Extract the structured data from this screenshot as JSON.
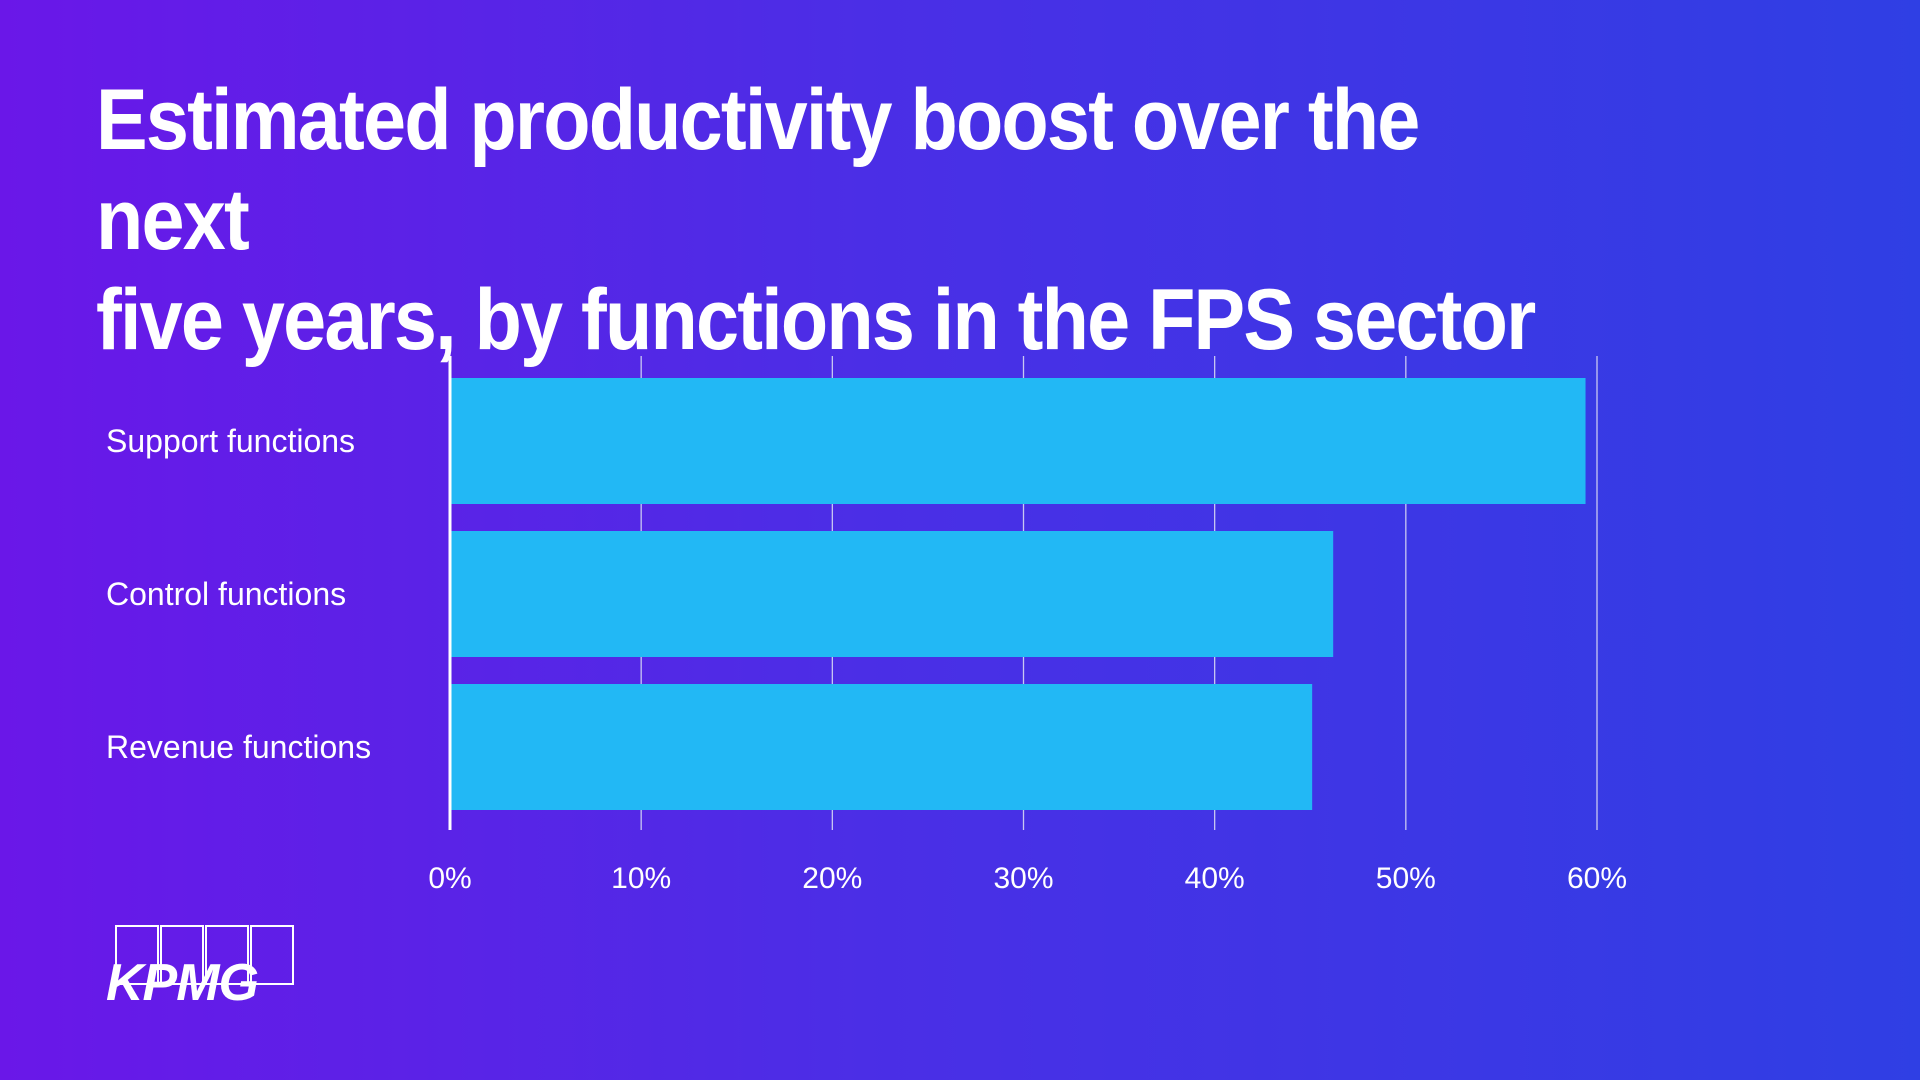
{
  "title": {
    "line1": "Estimated productivity boost over the next",
    "line2": "five years, by functions in the FPS sector"
  },
  "colors": {
    "bar": "#22b8f5",
    "gridline": "#c9c8f2",
    "text": "#ffffff"
  },
  "logo": {
    "text": "KPMG"
  },
  "chart_data": {
    "type": "bar",
    "orientation": "horizontal",
    "categories": [
      "Support functions",
      "Control functions",
      "Revenue functions"
    ],
    "values": [
      59.4,
      46.2,
      45.1
    ],
    "unit": "%",
    "xlim": [
      0,
      60
    ],
    "xticks": [
      "0%",
      "10%",
      "20%",
      "30%",
      "40%",
      "50%",
      "60%"
    ],
    "grid": true,
    "legend": "none"
  }
}
